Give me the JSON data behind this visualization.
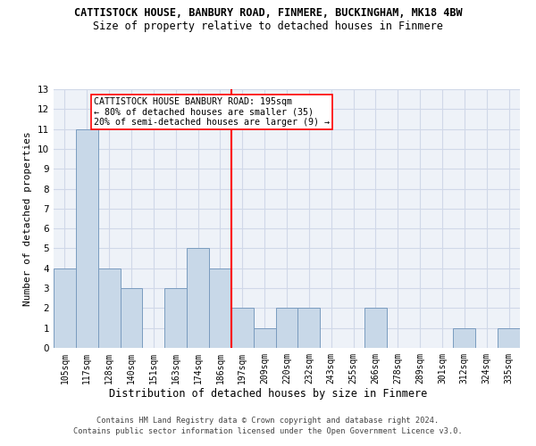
{
  "title": "CATTISTOCK HOUSE, BANBURY ROAD, FINMERE, BUCKINGHAM, MK18 4BW",
  "subtitle": "Size of property relative to detached houses in Finmere",
  "xlabel": "Distribution of detached houses by size in Finmere",
  "ylabel": "Number of detached properties",
  "bins": [
    "105sqm",
    "117sqm",
    "128sqm",
    "140sqm",
    "151sqm",
    "163sqm",
    "174sqm",
    "186sqm",
    "197sqm",
    "209sqm",
    "220sqm",
    "232sqm",
    "243sqm",
    "255sqm",
    "266sqm",
    "278sqm",
    "289sqm",
    "301sqm",
    "312sqm",
    "324sqm",
    "335sqm"
  ],
  "values": [
    4,
    11,
    4,
    3,
    0,
    3,
    5,
    4,
    2,
    1,
    2,
    2,
    0,
    0,
    2,
    0,
    0,
    0,
    1,
    0,
    1
  ],
  "bar_color": "#c8d8e8",
  "bar_edge_color": "#7a9cbf",
  "annotation_title": "CATTISTOCK HOUSE BANBURY ROAD: 195sqm",
  "annotation_line1": "← 80% of detached houses are smaller (35)",
  "annotation_line2": "20% of semi-detached houses are larger (9) →",
  "footer1": "Contains HM Land Registry data © Crown copyright and database right 2024.",
  "footer2": "Contains public sector information licensed under the Open Government Licence v3.0.",
  "ylim": [
    0,
    13
  ],
  "yticks": [
    0,
    1,
    2,
    3,
    4,
    5,
    6,
    7,
    8,
    9,
    10,
    11,
    12,
    13
  ],
  "grid_color": "#d0d8e8",
  "background_color": "#eef2f8",
  "title_fontsize": 8.5,
  "subtitle_fontsize": 8.5
}
